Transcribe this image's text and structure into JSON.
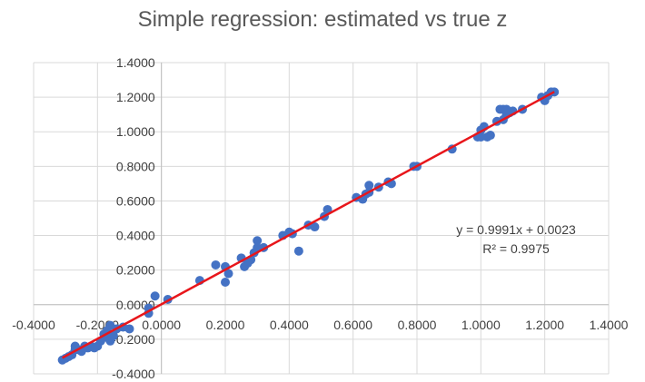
{
  "chart_data": {
    "type": "scatter",
    "title": "Simple regression: estimated vs true z",
    "xlabel": "",
    "ylabel": "",
    "xlim": [
      -0.4,
      1.4
    ],
    "ylim": [
      -0.4,
      1.4
    ],
    "x_tick_labels": [
      "-0.4000",
      "-0.2000",
      "0.0000",
      "0.2000",
      "0.4000",
      "0.6000",
      "0.8000",
      "1.0000",
      "1.2000",
      "1.4000"
    ],
    "y_tick_labels": [
      "-0.4000",
      "-0.2000",
      "0.0000",
      "0.2000",
      "0.4000",
      "0.6000",
      "0.8000",
      "1.0000",
      "1.2000",
      "1.4000"
    ],
    "grid": true,
    "marker_color": "#4472C4",
    "trendline": {
      "type": "linear",
      "slope": 0.9991,
      "intercept": 0.0023,
      "color": "#E8161B",
      "equation_label": "y = 0.9991x + 0.0023",
      "r2_label": "R² = 0.9975"
    },
    "series": [
      {
        "x": [
          -0.31,
          -0.3,
          -0.29,
          -0.28,
          -0.27,
          -0.27,
          -0.26,
          -0.25,
          -0.24,
          -0.23,
          -0.22,
          -0.21,
          -0.2,
          -0.19,
          -0.18,
          -0.17,
          -0.17,
          -0.16,
          -0.16,
          -0.15,
          -0.14,
          -0.12,
          -0.1,
          -0.04,
          -0.04,
          -0.02,
          0.02,
          0.12,
          0.17,
          0.2,
          0.2,
          0.21,
          0.25,
          0.26,
          0.27,
          0.28,
          0.29,
          0.3,
          0.3,
          0.32,
          0.38,
          0.4,
          0.41,
          0.43,
          0.46,
          0.48,
          0.51,
          0.52,
          0.61,
          0.63,
          0.64,
          0.65,
          0.65,
          0.68,
          0.71,
          0.72,
          0.79,
          0.8,
          0.91,
          0.99,
          1.0,
          1.0,
          1.01,
          1.02,
          1.03,
          1.05,
          1.06,
          1.07,
          1.07,
          1.08,
          1.08,
          1.09,
          1.1,
          1.13,
          1.19,
          1.2,
          1.21,
          1.22,
          1.23
        ],
        "y": [
          -0.32,
          -0.31,
          -0.3,
          -0.29,
          -0.26,
          -0.24,
          -0.26,
          -0.27,
          -0.24,
          -0.25,
          -0.24,
          -0.25,
          -0.24,
          -0.21,
          -0.17,
          -0.19,
          -0.15,
          -0.12,
          -0.21,
          -0.18,
          -0.14,
          -0.13,
          -0.14,
          -0.05,
          -0.02,
          0.05,
          0.03,
          0.14,
          0.23,
          0.22,
          0.13,
          0.18,
          0.27,
          0.22,
          0.24,
          0.26,
          0.3,
          0.37,
          0.33,
          0.33,
          0.4,
          0.42,
          0.41,
          0.31,
          0.46,
          0.45,
          0.51,
          0.55,
          0.62,
          0.61,
          0.64,
          0.65,
          0.69,
          0.68,
          0.71,
          0.7,
          0.8,
          0.8,
          0.9,
          0.97,
          0.97,
          1.01,
          1.03,
          0.97,
          0.98,
          1.06,
          1.13,
          1.13,
          1.07,
          1.1,
          1.13,
          1.11,
          1.12,
          1.13,
          1.2,
          1.18,
          1.21,
          1.23,
          1.23
        ]
      }
    ]
  }
}
